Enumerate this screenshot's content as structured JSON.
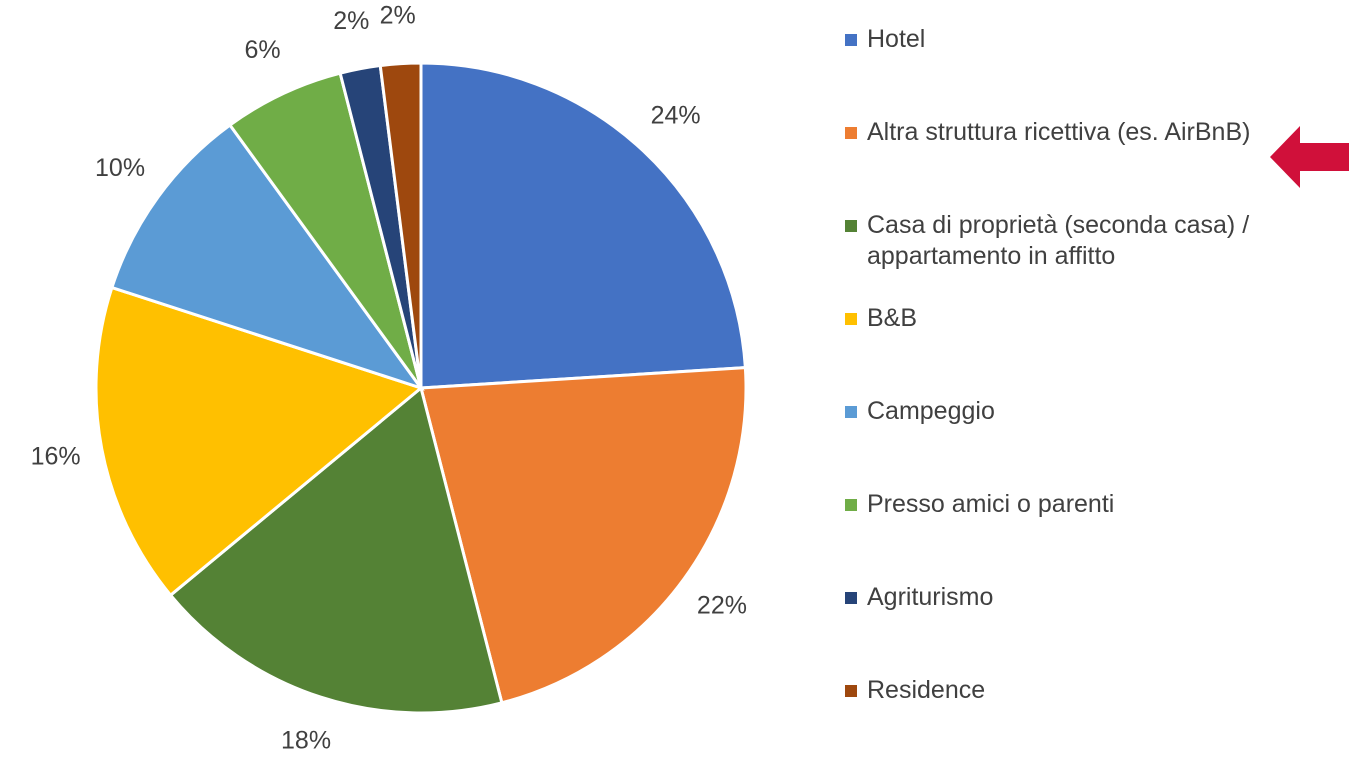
{
  "chart_data": {
    "type": "pie",
    "categories": [
      "Hotel",
      "Altra struttura ricettiva (es. AirBnB)",
      "Casa di proprietà (seconda casa) / appartamento in affitto",
      "B&B",
      "Campeggio",
      "Presso amici o parenti",
      "Agriturismo",
      "Residence"
    ],
    "values": [
      24,
      22,
      18,
      16,
      10,
      6,
      2,
      2
    ],
    "value_labels": [
      "24%",
      "22%",
      "18%",
      "16%",
      "10%",
      "6%",
      "2%",
      "2%"
    ],
    "colors": [
      "#4472c4",
      "#ed7d31",
      "#548235",
      "#ffc000",
      "#5b9bd5",
      "#70ad47",
      "#264478",
      "#9e480e"
    ],
    "legend": "right"
  }
}
